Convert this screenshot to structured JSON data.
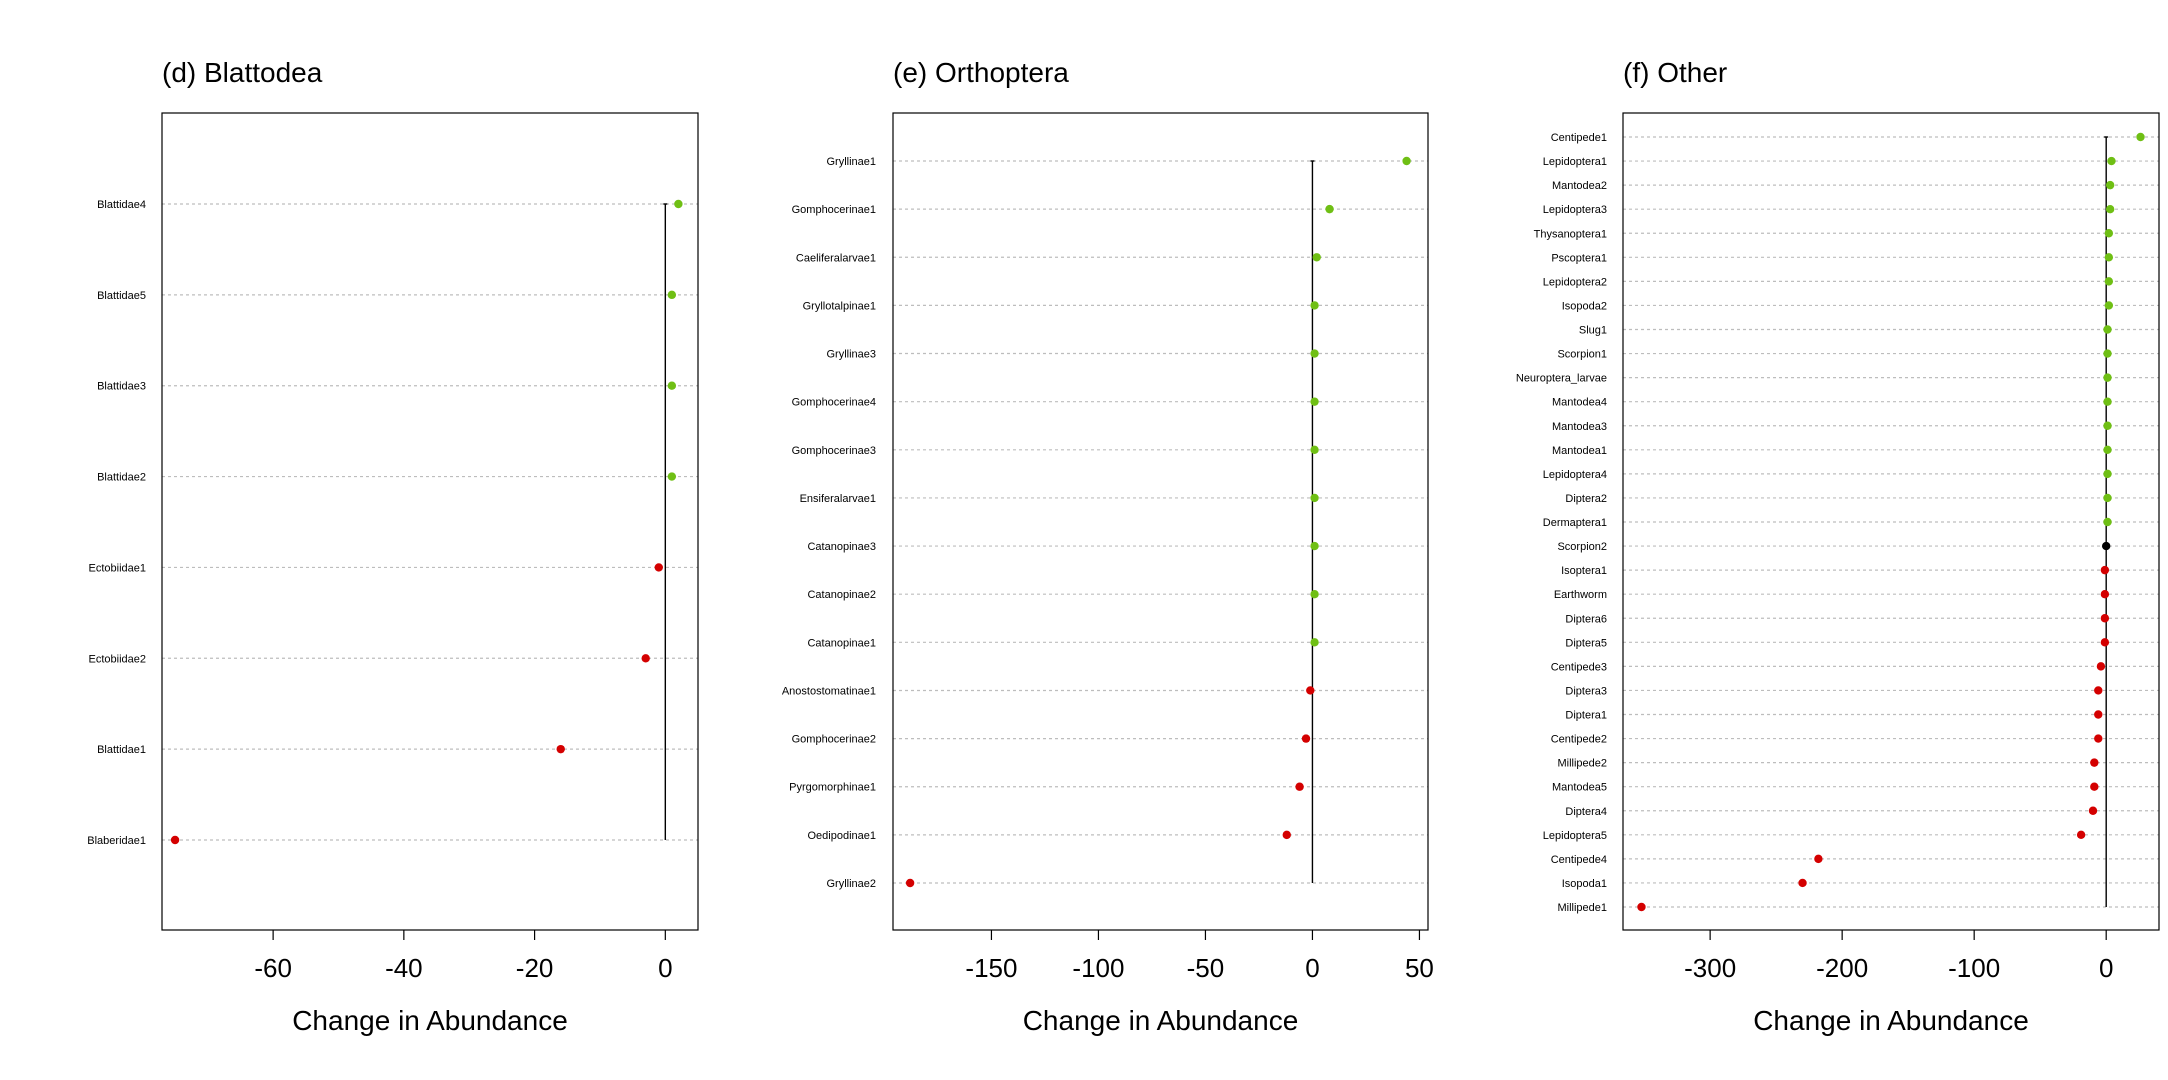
{
  "figure": {
    "xlabel": "Change in Abundance"
  },
  "colors": {
    "positive": "#6fbf14",
    "negative": "#d40000",
    "neutral": "#000000",
    "grid": "#bdbdbd"
  },
  "chart_data": [
    {
      "type": "dot",
      "title": "(d) Blattodea",
      "xlabel": "Change in Abundance",
      "xlim": [
        -77,
        5
      ],
      "xticks": [
        -60,
        -40,
        -20,
        0
      ],
      "xtick_labels": [
        "-60",
        "-40",
        "-20",
        "0"
      ],
      "categories": [
        "Blattidae4",
        "Blattidae5",
        "Blattidae3",
        "Blattidae2",
        "Ectobiidae1",
        "Ectobiidae2",
        "Blattidae1",
        "Blaberidae1"
      ],
      "values": [
        2,
        1,
        1,
        1,
        -1,
        -3,
        -16,
        -75
      ]
    },
    {
      "type": "dot",
      "title": "(e) Orthoptera",
      "xlabel": "Change in Abundance",
      "xlim": [
        -196,
        54
      ],
      "xticks": [
        -150,
        -100,
        -50,
        0,
        50
      ],
      "xtick_labels": [
        "-150",
        "-100",
        "-50",
        "0",
        "50"
      ],
      "categories": [
        "Gryllinae1",
        "Gomphocerinae1",
        "Caeliferalarvae1",
        "Gryllotalpinae1",
        "Gryllinae3",
        "Gomphocerinae4",
        "Gomphocerinae3",
        "Ensiferalarvae1",
        "Catanopinae3",
        "Catanopinae2",
        "Catanopinae1",
        "Anostostomatinae1",
        "Gomphocerinae2",
        "Pyrgomorphinae1",
        "Oedipodinae1",
        "Gryllinae2"
      ],
      "values": [
        44,
        8,
        2,
        1,
        1,
        1,
        1,
        1,
        1,
        1,
        1,
        -1,
        -3,
        -6,
        -12,
        -188
      ]
    },
    {
      "type": "dot",
      "title": "(f) Other",
      "xlabel": "Change in Abundance",
      "xlim": [
        -366,
        40
      ],
      "xticks": [
        -300,
        -200,
        -100,
        0
      ],
      "xtick_labels": [
        "-300",
        "-200",
        "-100",
        "0"
      ],
      "categories": [
        "Centipede1",
        "Lepidoptera1",
        "Mantodea2",
        "Lepidoptera3",
        "Thysanoptera1",
        "Pscoptera1",
        "Lepidoptera2",
        "Isopoda2",
        "Slug1",
        "Scorpion1",
        "Neuroptera_larvae",
        "Mantodea4",
        "Mantodea3",
        "Mantodea1",
        "Lepidoptera4",
        "Diptera2",
        "Dermaptera1",
        "Scorpion2",
        "Isoptera1",
        "Earthworm",
        "Diptera6",
        "Diptera5",
        "Centipede3",
        "Diptera3",
        "Diptera1",
        "Centipede2",
        "Millipede2",
        "Mantodea5",
        "Diptera4",
        "Lepidoptera5",
        "Centipede4",
        "Isopoda1",
        "Millipede1"
      ],
      "values": [
        26,
        4,
        3,
        3,
        2,
        2,
        2,
        2,
        1,
        1,
        1,
        1,
        1,
        1,
        1,
        1,
        1,
        0,
        -1,
        -1,
        -1,
        -1,
        -4,
        -6,
        -6,
        -6,
        -9,
        -9,
        -10,
        -19,
        -218,
        -230,
        -352
      ]
    }
  ]
}
